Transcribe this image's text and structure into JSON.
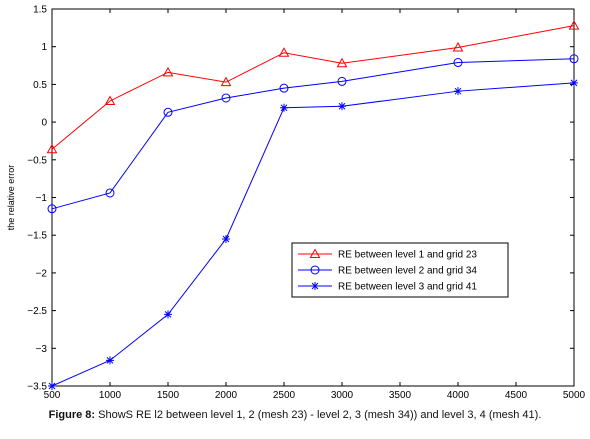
{
  "caption": {
    "label": "Figure 8:",
    "text": "ShowS RE l2 between level 1, 2 (mesh 23) - level 2, 3 (mesh 34)) and level 3, 4 (mesh 41)."
  },
  "chart_data": {
    "type": "line",
    "title": "",
    "xlabel": "",
    "ylabel": "the relative error",
    "xlim": [
      500,
      5000
    ],
    "ylim": [
      -3.5,
      1.5
    ],
    "xticks": [
      500,
      1000,
      1500,
      2000,
      2500,
      3000,
      3500,
      4000,
      4500,
      5000
    ],
    "yticks": [
      -3.5,
      -3,
      -2.5,
      -2,
      -1.5,
      -1,
      -0.5,
      0,
      0.5,
      1,
      1.5
    ],
    "grid": false,
    "legend_position": "right",
    "series": [
      {
        "name": "RE between level 1 and grid 23",
        "color": "#ff0000",
        "marker": "triangle",
        "x": [
          500,
          1000,
          1500,
          2000,
          2500,
          3000,
          4000,
          5000
        ],
        "y": [
          -0.36,
          0.28,
          0.66,
          0.53,
          0.92,
          0.78,
          0.99,
          1.28
        ]
      },
      {
        "name": "RE between level 2 and grid 34",
        "color": "#0000ff",
        "marker": "circle",
        "x": [
          500,
          1000,
          1500,
          2000,
          2500,
          3000,
          4000,
          5000
        ],
        "y": [
          -1.15,
          -0.94,
          0.13,
          0.32,
          0.45,
          0.54,
          0.79,
          0.84
        ]
      },
      {
        "name": "RE between level 3 and grid 41",
        "color": "#0000ff",
        "marker": "star",
        "x": [
          500,
          1000,
          1500,
          2000,
          2500,
          3000,
          4000,
          5000
        ],
        "y": [
          -3.5,
          -3.16,
          -2.55,
          -1.55,
          0.19,
          0.21,
          0.41,
          0.52
        ]
      }
    ]
  }
}
